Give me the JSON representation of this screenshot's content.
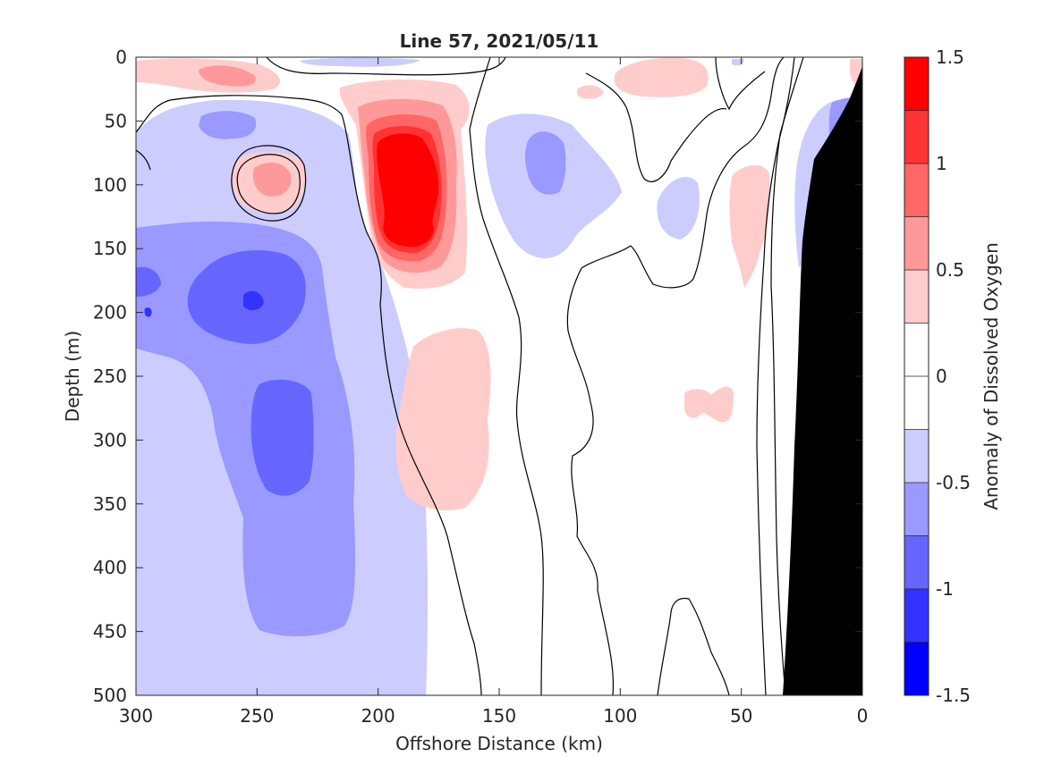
{
  "chart_data": {
    "type": "heatmap",
    "title": "Line 57, 2021/05/11",
    "xlabel": "Offshore Distance (km)",
    "ylabel": "Depth (m)",
    "xlim": [
      300,
      0
    ],
    "ylim": [
      0,
      500
    ],
    "x_reversed": true,
    "y_reversed": true,
    "x_ticks": [
      "300",
      "250",
      "200",
      "150",
      "100",
      "50",
      "0"
    ],
    "y_ticks": [
      "0",
      "50",
      "100",
      "150",
      "200",
      "250",
      "300",
      "350",
      "400",
      "450",
      "500"
    ],
    "colorbar": {
      "label": "Anomaly of Dissolved Oxygen",
      "range": [
        -1.5,
        1.5
      ],
      "tick_labels": [
        "1.5",
        "1",
        "0.5",
        "0",
        "-0.5",
        "-1",
        "-1.5"
      ],
      "levels": [
        -1.5,
        -1.25,
        -1.0,
        -0.75,
        -0.5,
        -0.25,
        0,
        0.25,
        0.5,
        0.75,
        1.0,
        1.25,
        1.5
      ],
      "colors": [
        "#0000ff",
        "#3333ff",
        "#6666ff",
        "#9999ff",
        "#ccccff",
        "#ffffff",
        "#ffffff",
        "#ffcccc",
        "#ff9999",
        "#ff6666",
        "#ff3333",
        "#ff0000"
      ]
    },
    "grid": false,
    "legend": "colorbar-right",
    "features": [
      {
        "kind": "max",
        "x": 185,
        "y": 110,
        "value": 1.5
      },
      {
        "kind": "max",
        "x": 255,
        "y": 95,
        "value": 0.6
      },
      {
        "kind": "min",
        "x": 250,
        "y": 190,
        "value": -1.2
      },
      {
        "kind": "min",
        "x": 240,
        "y": 300,
        "value": -1.0
      },
      {
        "kind": "min",
        "x": 130,
        "y": 85,
        "value": -0.8
      },
      {
        "kind": "max",
        "x": 185,
        "y": 300,
        "value": 0.4
      },
      {
        "kind": "min",
        "x": 280,
        "y": 170,
        "value": -0.9
      },
      {
        "kind": "bathymetry",
        "x": [
          33,
          18,
          0
        ],
        "y": [
          500,
          160,
          35
        ]
      }
    ]
  },
  "colors": {
    "bathymetry": "#000000",
    "contour_line": "#000000"
  }
}
